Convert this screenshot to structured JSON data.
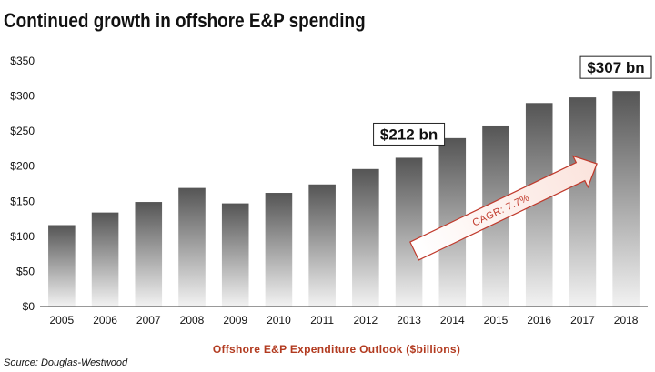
{
  "chart_data": {
    "type": "bar",
    "title": "Continued growth in offshore E&P spending",
    "xlabel": "Offshore E&P Expenditure Outlook ($billions)",
    "ylabel": "",
    "source": "Source: Douglas-Westwood",
    "categories": [
      "2005",
      "2006",
      "2007",
      "2008",
      "2009",
      "2010",
      "2011",
      "2012",
      "2013",
      "2014",
      "2015",
      "2016",
      "2017",
      "2018"
    ],
    "values": [
      116,
      134,
      149,
      169,
      147,
      162,
      174,
      196,
      212,
      240,
      258,
      290,
      298,
      307
    ],
    "ylim": [
      0,
      350
    ],
    "yticks": [
      0,
      50,
      100,
      150,
      200,
      250,
      300,
      350
    ],
    "ytick_labels": [
      "$0",
      "$50",
      "$100",
      "$150",
      "$200",
      "$250",
      "$300",
      "$350"
    ],
    "grid": false,
    "annotations": [
      {
        "text": "$212 bn",
        "category": "2013"
      },
      {
        "text": "$307 bn",
        "category": "2018"
      },
      {
        "text": "CAGR: 7.7%",
        "from_category": "2013",
        "to_category": "2018"
      }
    ],
    "colors": {
      "bar_dark": "#555555",
      "bar_light": "#f2f2f2",
      "cagr": "#c0392b",
      "xlabel": "#b23a1f"
    }
  }
}
